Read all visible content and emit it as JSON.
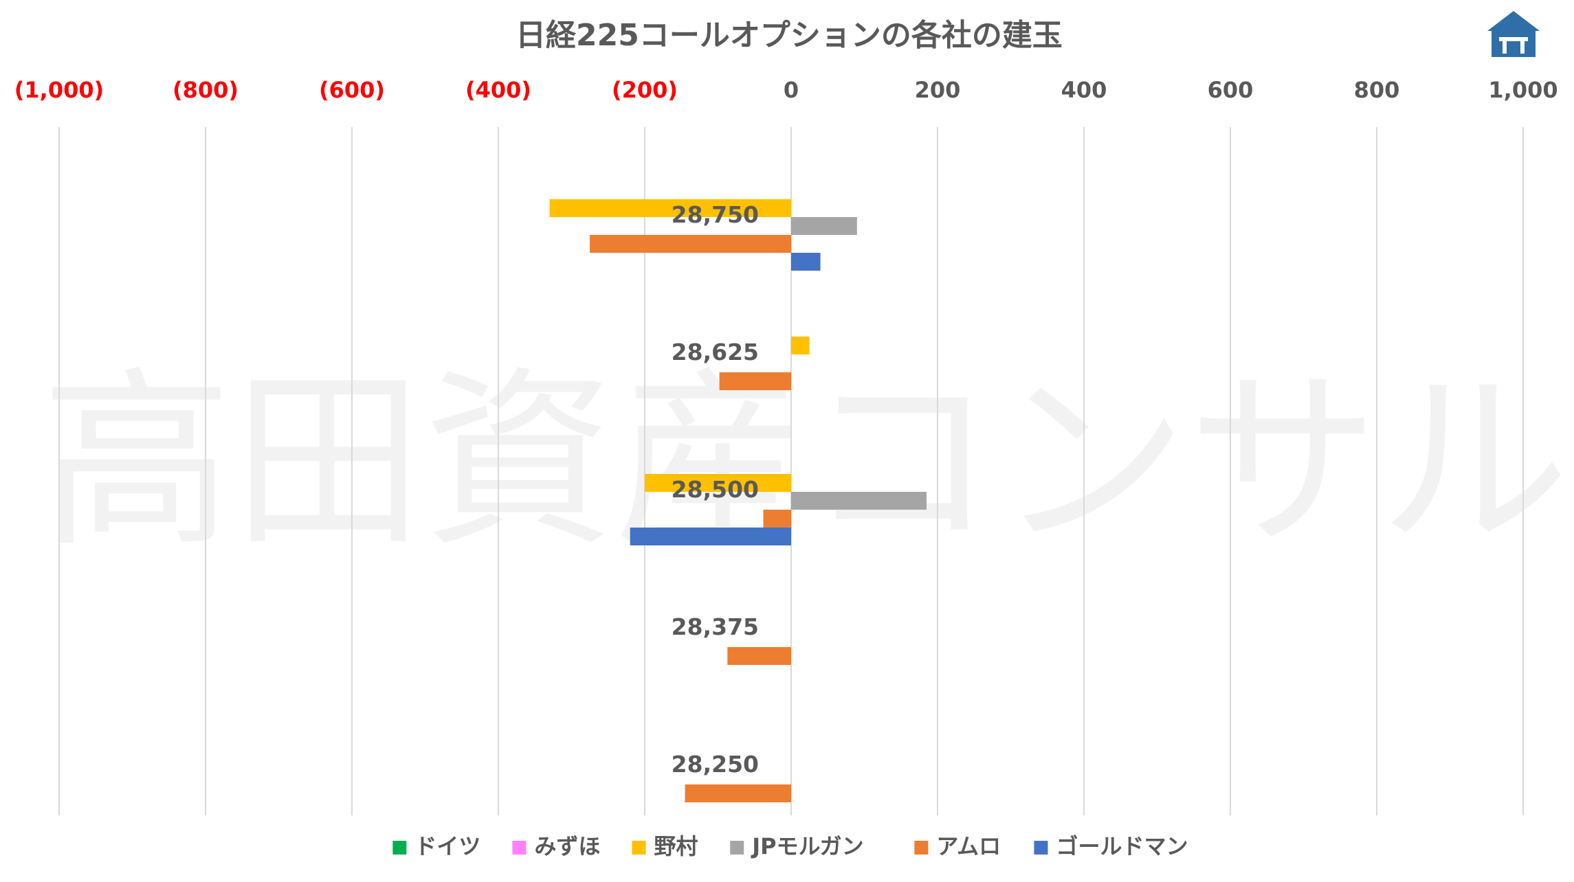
{
  "chart_data": {
    "type": "bar",
    "orientation": "horizontal",
    "title": "日経225コールオプションの各社の建玉",
    "xlim": [
      -1000,
      1000
    ],
    "x_ticks": [
      {
        "value": -1000,
        "label": "(1,000)"
      },
      {
        "value": -800,
        "label": "(800)"
      },
      {
        "value": -600,
        "label": "(600)"
      },
      {
        "value": -400,
        "label": "(400)"
      },
      {
        "value": -200,
        "label": "(200)"
      },
      {
        "value": 0,
        "label": "0"
      },
      {
        "value": 200,
        "label": "200"
      },
      {
        "value": 400,
        "label": "400"
      },
      {
        "value": 600,
        "label": "600"
      },
      {
        "value": 800,
        "label": "800"
      },
      {
        "value": 1000,
        "label": "1,000"
      }
    ],
    "negative_tick_color": "#ff0000",
    "positive_tick_color": "#595959",
    "grid": "vertical",
    "legend_position": "bottom",
    "categories": [
      "28,750",
      "28,625",
      "28,500",
      "28,375",
      "28,250"
    ],
    "series": [
      {
        "name": "ドイツ",
        "color": "#00b050",
        "values": [
          0,
          0,
          0,
          0,
          0
        ]
      },
      {
        "name": "みずほ",
        "color": "#ff80ff",
        "values": [
          0,
          0,
          0,
          0,
          0
        ]
      },
      {
        "name": "野村",
        "color": "#ffc000",
        "values": [
          -330,
          25,
          -200,
          0,
          0
        ]
      },
      {
        "name": "JPモルガン",
        "color": "#a5a5a5",
        "values": [
          90,
          0,
          185,
          0,
          0
        ]
      },
      {
        "name": "アムロ",
        "color": "#ed7d31",
        "values": [
          -275,
          -98,
          -38,
          -87,
          -145
        ]
      },
      {
        "name": "ゴールドマン",
        "color": "#4472c4",
        "values": [
          40,
          0,
          -220,
          0,
          0
        ]
      }
    ]
  },
  "watermark": "高田資産コンサル",
  "logo_icon": "house-logo-icon"
}
